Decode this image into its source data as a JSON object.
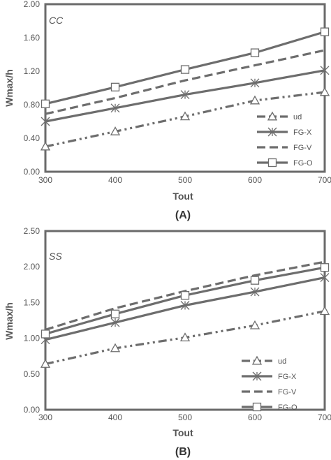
{
  "chart_data": [
    {
      "type": "line",
      "panel_label": "(A)",
      "annotation": "CC",
      "xlabel": "Tout",
      "ylabel": "Wmax/h",
      "x": [
        300,
        400,
        500,
        600,
        700
      ],
      "xlim": [
        300,
        700
      ],
      "ylim": [
        0,
        2
      ],
      "yticks": [
        "0.00",
        "0.40",
        "0.80",
        "1.20",
        "1.60",
        "2.00"
      ],
      "xticks": [
        "300",
        "400",
        "500",
        "600",
        "700"
      ],
      "grid": false,
      "legend_position": "bottom-right",
      "series": [
        {
          "name": "ud",
          "values": [
            0.3,
            0.48,
            0.66,
            0.85,
            0.95
          ],
          "dash": "dashdotdot",
          "marker": "triangle"
        },
        {
          "name": "FG-X",
          "values": [
            0.6,
            0.76,
            0.92,
            1.06,
            1.21
          ],
          "dash": "solid",
          "marker": "asterisk"
        },
        {
          "name": "FG-V",
          "values": [
            0.69,
            0.88,
            1.09,
            1.27,
            1.45
          ],
          "dash": "dashed",
          "marker": "none"
        },
        {
          "name": "FG-O",
          "values": [
            0.81,
            1.01,
            1.22,
            1.42,
            1.67
          ],
          "dash": "solid",
          "marker": "square"
        }
      ]
    },
    {
      "type": "line",
      "panel_label": "(B)",
      "annotation": "SS",
      "xlabel": "Tout",
      "ylabel": "Wmax/h",
      "x": [
        300,
        400,
        500,
        600,
        700
      ],
      "xlim": [
        300,
        700
      ],
      "ylim": [
        0,
        2.5
      ],
      "yticks": [
        "0.00",
        "0.50",
        "1.00",
        "1.50",
        "2.00",
        "2.50"
      ],
      "xticks": [
        "300",
        "400",
        "500",
        "600",
        "700"
      ],
      "grid": false,
      "legend_position": "bottom-right",
      "series": [
        {
          "name": "ud",
          "values": [
            0.64,
            0.86,
            1.01,
            1.18,
            1.38
          ],
          "dash": "dashdotdot",
          "marker": "triangle"
        },
        {
          "name": "FG-X",
          "values": [
            0.98,
            1.22,
            1.46,
            1.65,
            1.85
          ],
          "dash": "solid",
          "marker": "asterisk"
        },
        {
          "name": "FG-V",
          "values": [
            1.12,
            1.42,
            1.66,
            1.88,
            2.07
          ],
          "dash": "dashed",
          "marker": "none"
        },
        {
          "name": "FG-O",
          "values": [
            1.06,
            1.34,
            1.6,
            1.81,
            1.99
          ],
          "dash": "solid",
          "marker": "square"
        }
      ]
    }
  ],
  "colors": {
    "series": "#6d6d6d",
    "frame": "#6a6a6a",
    "text": "#555555"
  }
}
